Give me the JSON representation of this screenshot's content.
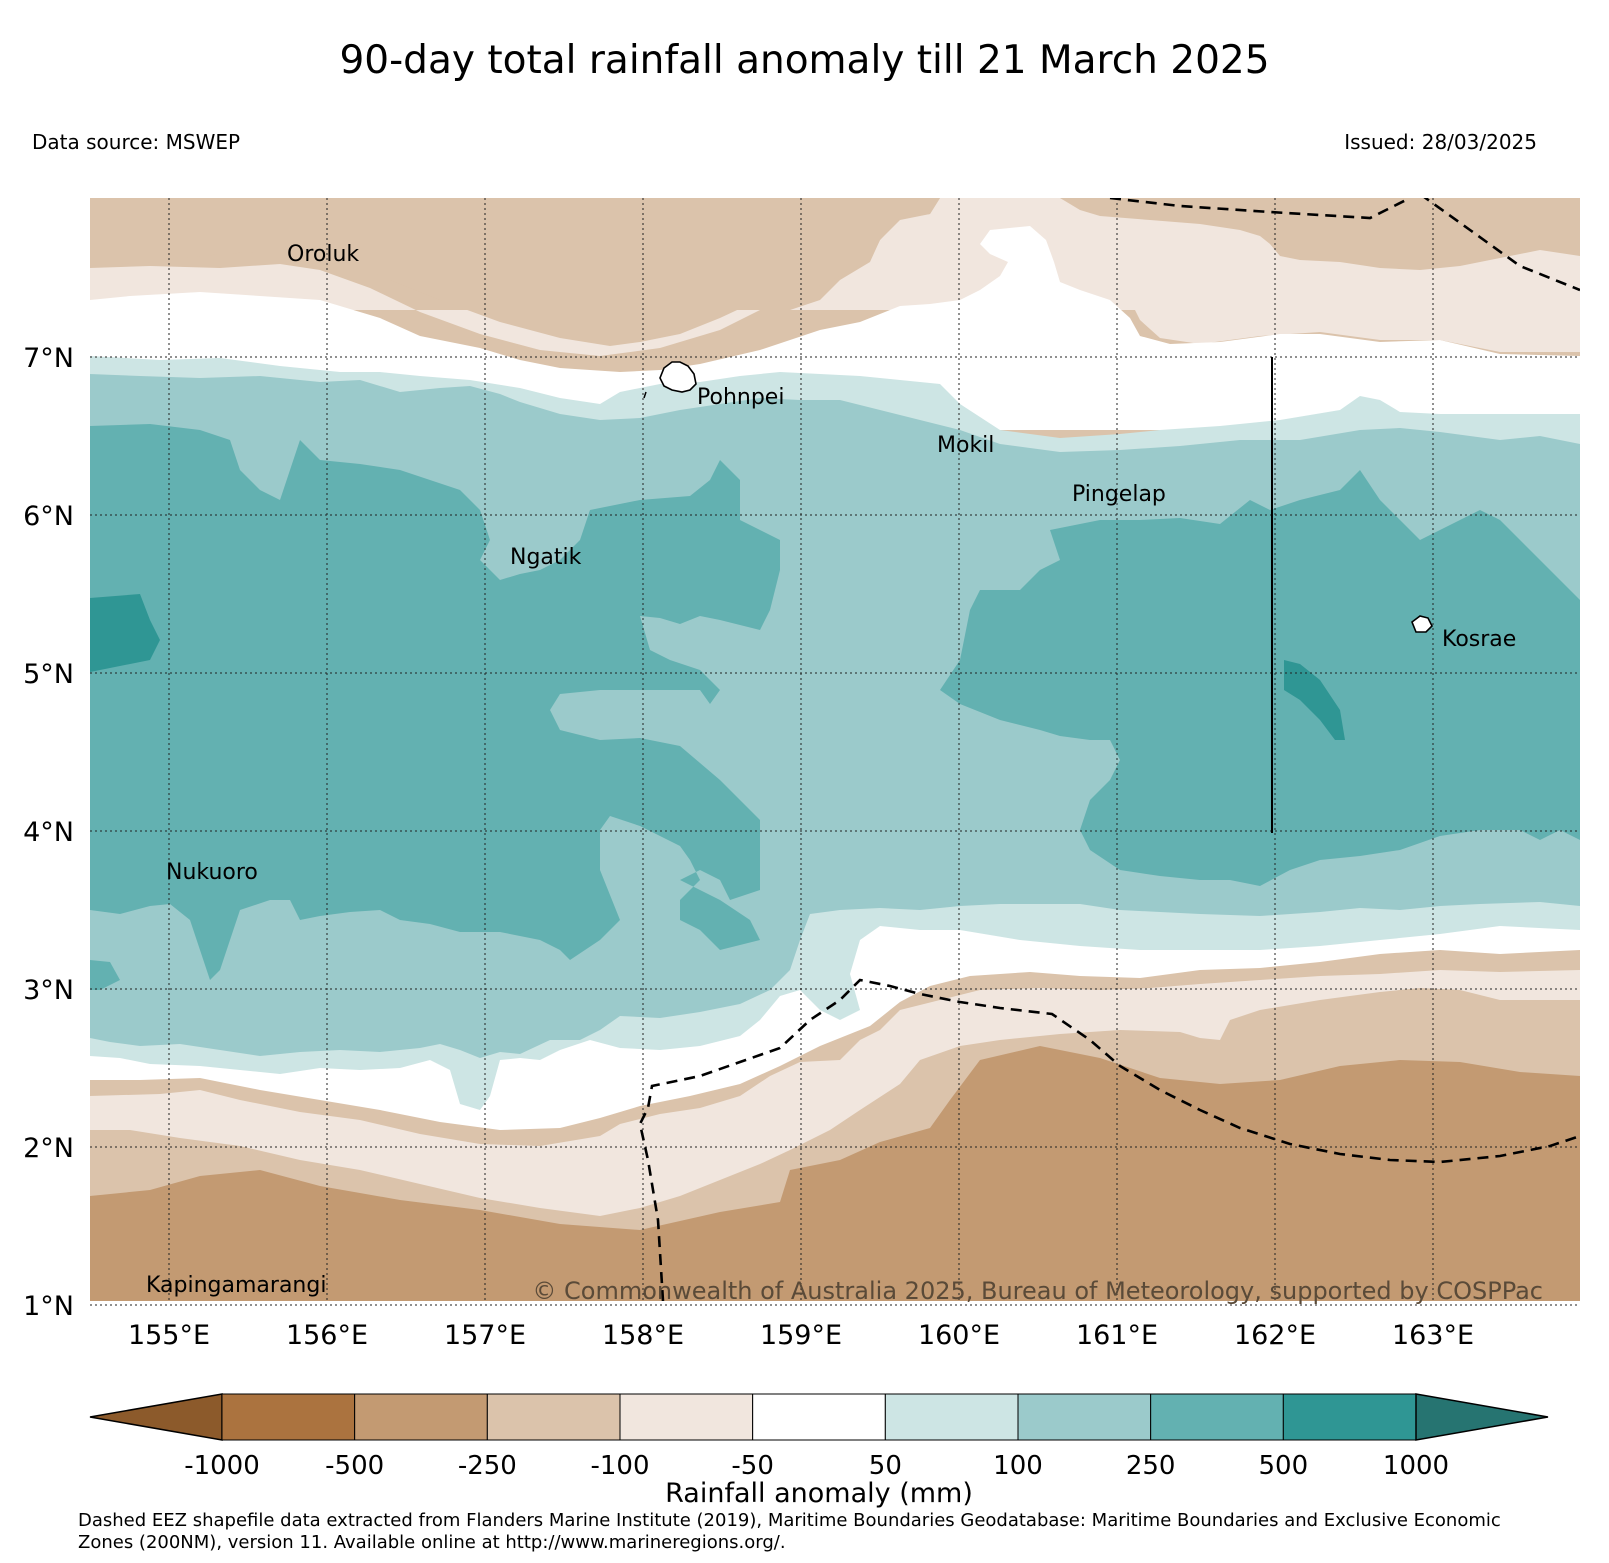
{
  "title": "90-day total rainfall anomaly till 21 March 2025",
  "data_source": "Data source: MSWEP",
  "issued": "Issued: 28/03/2025",
  "copyright": "© Commonwealth of Australia 2025, Bureau of Meteorology, supported by COSPPac",
  "footnote_line1": "Dashed EEZ shapefile data extracted from Flanders Marine Institute (2019), Maritime Boundaries Geodatabase: Maritime Boundaries and Exclusive Economic",
  "footnote_line2": "Zones (200NM), version 11. Available online at http://www.marineregions.org/.",
  "map": {
    "lon_labels": [
      "155°E",
      "156°E",
      "157°E",
      "158°E",
      "159°E",
      "160°E",
      "161°E",
      "162°E",
      "163°E"
    ],
    "lat_labels": [
      "7°N",
      "6°N",
      "5°N",
      "4°N",
      "3°N",
      "2°N",
      "1°N"
    ],
    "places": [
      {
        "name": "Oroluk"
      },
      {
        "name": "Pohnpei"
      },
      {
        "name": "Mokil"
      },
      {
        "name": "Pingelap"
      },
      {
        "name": "Ngatik"
      },
      {
        "name": "Kosrae"
      },
      {
        "name": "Nukuoro"
      },
      {
        "name": "Kapingamarangi"
      }
    ]
  },
  "colorbar": {
    "title": "Rainfall anomaly (mm)",
    "tick_labels": [
      "-1000",
      "-500",
      "-250",
      "-100",
      "-50",
      "50",
      "100",
      "250",
      "500",
      "1000"
    ],
    "colors": {
      "below_-1000": "#8c5a2b",
      "-1000_-500": "#ab733f",
      "-500_-250": "#c39a72",
      "-250_-100": "#dbc3ab",
      "-100_-50": "#f1e6de",
      "-50_50": "#ffffff",
      "50_100": "#cde5e4",
      "100_250": "#9bcacb",
      "250_500": "#63b1b1",
      "500_1000": "#2f9694",
      "above_1000": "#267471"
    }
  }
}
